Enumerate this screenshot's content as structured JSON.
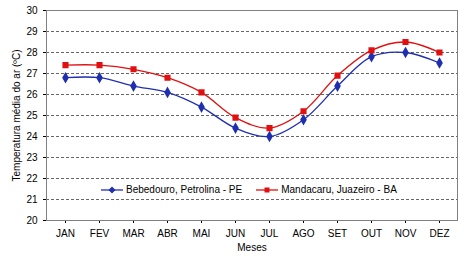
{
  "chart_data": {
    "type": "line",
    "x_label": "Meses",
    "y_label": "Temperatura média do ar (ºC)",
    "categories": [
      "JAN",
      "FEV",
      "MAR",
      "ABR",
      "MAI",
      "JUN",
      "JUL",
      "AGO",
      "SET",
      "OUT",
      "NOV",
      "DEZ"
    ],
    "series": [
      {
        "name": "Bebedouro, Petrolina - PE",
        "color": "#1f2fb0",
        "marker": "diamond",
        "values": [
          26.8,
          26.8,
          26.4,
          26.1,
          25.4,
          24.4,
          24.0,
          24.8,
          26.4,
          27.8,
          28.0,
          27.5
        ]
      },
      {
        "name": "Mandacaru, Juazeiro - BA",
        "color": "#e01010",
        "marker": "square",
        "values": [
          27.4,
          27.4,
          27.2,
          26.8,
          26.1,
          24.9,
          24.4,
          25.2,
          26.9,
          28.1,
          28.5,
          28.0
        ]
      }
    ],
    "ylim": [
      20,
      30
    ],
    "yticks": [
      20,
      21,
      22,
      23,
      24,
      25,
      26,
      27,
      28,
      29,
      30
    ],
    "grid": true,
    "legend": "bottom"
  }
}
